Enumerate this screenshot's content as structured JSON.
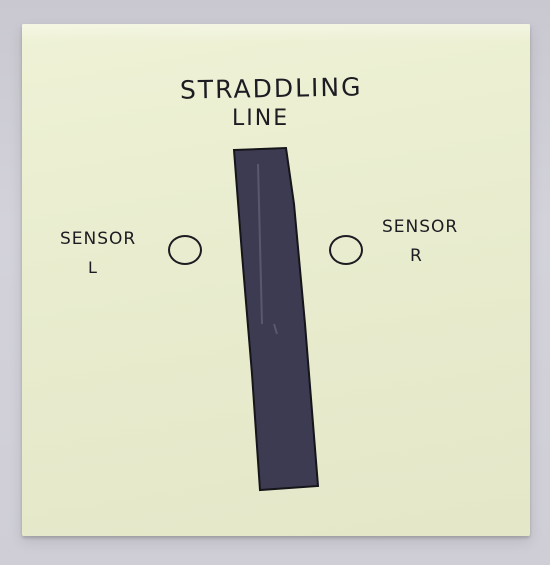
{
  "title": {
    "line1": "STRADDLING",
    "line2": "LINE"
  },
  "sensors": {
    "left": {
      "word": "SENSOR",
      "letter": "L"
    },
    "right": {
      "word": "SENSOR",
      "letter": "R"
    }
  },
  "colors": {
    "note": "#eaedcf",
    "ink": "#1c1c22",
    "line_fill": "#3d3b52"
  }
}
